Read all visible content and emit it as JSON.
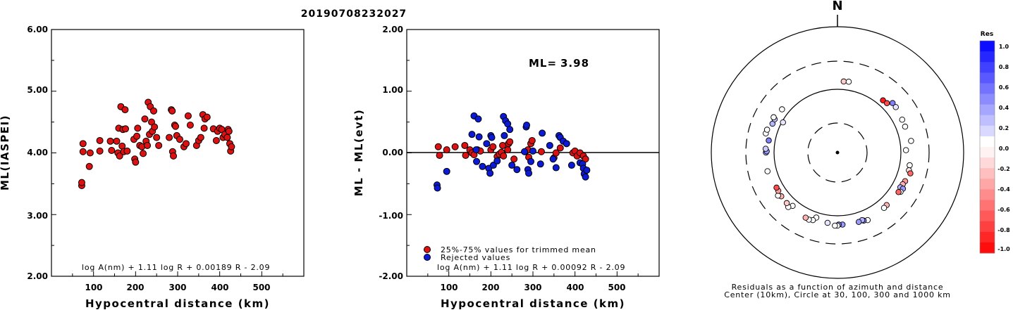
{
  "title": "20190708232027",
  "chart_data": [
    {
      "type": "scatter",
      "xlabel": "Hypocentral distance (km)",
      "ylabel": "ML(IASPEI)",
      "xlim": [
        0,
        600
      ],
      "ylim": [
        2.0,
        6.0
      ],
      "xticks": [
        "100",
        "200",
        "300",
        "400",
        "500"
      ],
      "yticks": [
        "2.00",
        "3.00",
        "4.00",
        "5.00",
        "6.00"
      ],
      "formula": "log A(nm) + 1.11 log R + 0.00189 R - 2.09",
      "color": "#dd1111",
      "points": [
        [
          72,
          3.47
        ],
        [
          72,
          3.52
        ],
        [
          75,
          4.15
        ],
        [
          75,
          4.02
        ],
        [
          90,
          3.78
        ],
        [
          92,
          4.0
        ],
        [
          115,
          4.2
        ],
        [
          115,
          4.03
        ],
        [
          140,
          4.19
        ],
        [
          143,
          4.04
        ],
        [
          155,
          4.19
        ],
        [
          158,
          4.0
        ],
        [
          160,
          4.4
        ],
        [
          162,
          3.95
        ],
        [
          165,
          4.75
        ],
        [
          168,
          4.11
        ],
        [
          170,
          4.38
        ],
        [
          172,
          4.02
        ],
        [
          175,
          4.7
        ],
        [
          176,
          4.39
        ],
        [
          180,
          4.03
        ],
        [
          196,
          4.22
        ],
        [
          198,
          3.9
        ],
        [
          200,
          3.85
        ],
        [
          203,
          4.27
        ],
        [
          205,
          4.4
        ],
        [
          210,
          4.12
        ],
        [
          215,
          4.1
        ],
        [
          218,
          3.99
        ],
        [
          222,
          4.55
        ],
        [
          225,
          4.19
        ],
        [
          228,
          4.12
        ],
        [
          230,
          4.82
        ],
        [
          233,
          4.3
        ],
        [
          235,
          4.75
        ],
        [
          238,
          4.5
        ],
        [
          240,
          4.35
        ],
        [
          243,
          4.68
        ],
        [
          245,
          4.42
        ],
        [
          250,
          4.25
        ],
        [
          255,
          4.12
        ],
        [
          280,
          4.25
        ],
        [
          285,
          4.7
        ],
        [
          287,
          4.68
        ],
        [
          288,
          4.02
        ],
        [
          290,
          3.95
        ],
        [
          293,
          4.45
        ],
        [
          295,
          4.43
        ],
        [
          298,
          4.28
        ],
        [
          305,
          4.22
        ],
        [
          315,
          4.1
        ],
        [
          320,
          4.15
        ],
        [
          325,
          4.6
        ],
        [
          330,
          4.45
        ],
        [
          345,
          4.12
        ],
        [
          350,
          4.2
        ],
        [
          355,
          4.25
        ],
        [
          360,
          4.62
        ],
        [
          363,
          4.4
        ],
        [
          365,
          4.55
        ],
        [
          370,
          4.58
        ],
        [
          385,
          4.39
        ],
        [
          392,
          4.2
        ],
        [
          395,
          4.35
        ],
        [
          400,
          4.4
        ],
        [
          405,
          4.38
        ],
        [
          408,
          4.25
        ],
        [
          412,
          4.3
        ],
        [
          418,
          4.25
        ],
        [
          420,
          4.38
        ],
        [
          422,
          4.35
        ],
        [
          424,
          4.15
        ],
        [
          426,
          4.03
        ],
        [
          428,
          4.1
        ]
      ]
    },
    {
      "type": "scatter",
      "xlabel": "Hypocentral distance (km)",
      "ylabel": "ML - ML(evt)",
      "xlim": [
        0,
        600
      ],
      "ylim": [
        -2.0,
        2.0
      ],
      "xticks": [
        "100",
        "200",
        "300",
        "400",
        "500"
      ],
      "yticks": [
        "-2.00",
        "-1.00",
        "0.00",
        "1.00",
        "2.00"
      ],
      "ml_label": "ML=",
      "ml_value": "3.98",
      "legend": [
        "25%-75% values for trimmed mean",
        "Rejected values"
      ],
      "formula": "log A(nm) + 1.11 log R + 0.00092 R - 2.09",
      "trimmed_color": "#dd1111",
      "rejected_color": "#0a1ad6",
      "trimmed": [
        [
          75,
          0.1
        ],
        [
          78,
          -0.04
        ],
        [
          95,
          0.05
        ],
        [
          115,
          0.1
        ],
        [
          138,
          0.12
        ],
        [
          140,
          -0.04
        ],
        [
          150,
          0.05
        ],
        [
          155,
          0.0
        ],
        [
          160,
          -0.03
        ],
        [
          168,
          0.05
        ],
        [
          175,
          0.03
        ],
        [
          200,
          0.05
        ],
        [
          205,
          0.1
        ],
        [
          215,
          -0.06
        ],
        [
          220,
          -0.02
        ],
        [
          225,
          0.01
        ],
        [
          228,
          0.12
        ],
        [
          230,
          -0.05
        ],
        [
          240,
          0.05
        ],
        [
          242,
          0.15
        ],
        [
          245,
          0.18
        ],
        [
          255,
          -0.1
        ],
        [
          282,
          0.02
        ],
        [
          288,
          0.05
        ],
        [
          290,
          -0.07
        ],
        [
          295,
          0.15
        ],
        [
          298,
          0.2
        ],
        [
          320,
          0.02
        ],
        [
          350,
          -0.08
        ],
        [
          355,
          0.0
        ],
        [
          365,
          0.08
        ],
        [
          395,
          0.0
        ],
        [
          400,
          0.03
        ],
        [
          405,
          -0.05
        ],
        [
          412,
          0.0
        ],
        [
          420,
          -0.05
        ],
        [
          425,
          -0.1
        ]
      ],
      "rejected": [
        [
          72,
          -0.52
        ],
        [
          73,
          -0.57
        ],
        [
          95,
          -0.3
        ],
        [
          155,
          0.3
        ],
        [
          160,
          0.6
        ],
        [
          165,
          0.05
        ],
        [
          166,
          -0.14
        ],
        [
          170,
          0.55
        ],
        [
          172,
          0.26
        ],
        [
          180,
          -0.22
        ],
        [
          190,
          0.15
        ],
        [
          195,
          -0.25
        ],
        [
          198,
          -0.33
        ],
        [
          200,
          0.28
        ],
        [
          202,
          0.25
        ],
        [
          206,
          -0.2
        ],
        [
          215,
          -0.13
        ],
        [
          230,
          0.59
        ],
        [
          232,
          0.28
        ],
        [
          235,
          0.52
        ],
        [
          240,
          0.47
        ],
        [
          245,
          0.38
        ],
        [
          250,
          -0.2
        ],
        [
          262,
          -0.27
        ],
        [
          280,
          0.02
        ],
        [
          284,
          0.42
        ],
        [
          285,
          0.45
        ],
        [
          288,
          -0.27
        ],
        [
          290,
          -0.33
        ],
        [
          295,
          -0.14
        ],
        [
          300,
          0.03
        ],
        [
          318,
          -0.18
        ],
        [
          322,
          0.32
        ],
        [
          340,
          0.12
        ],
        [
          348,
          -0.1
        ],
        [
          355,
          -0.24
        ],
        [
          362,
          0.28
        ],
        [
          365,
          0.25
        ],
        [
          372,
          0.19
        ],
        [
          380,
          0.15
        ],
        [
          392,
          -0.2
        ],
        [
          412,
          -0.16
        ],
        [
          418,
          -0.18
        ],
        [
          420,
          -0.25
        ],
        [
          422,
          -0.34
        ],
        [
          425,
          -0.39
        ],
        [
          428,
          -0.28
        ]
      ]
    },
    {
      "type": "scatter",
      "subtype": "polar",
      "north_label": "N",
      "rings_km": [
        30,
        100,
        300,
        1000
      ],
      "colorbar_title": "Res",
      "colorbar_ticks": [
        "1.0",
        "0.8",
        "0.6",
        "0.4",
        "0.2",
        "0.0",
        "-0.2",
        "-0.4",
        "-0.6",
        "-0.8",
        "-1.0"
      ],
      "caption_line1": "Residuals as a function of azimuth and distance",
      "caption_line2": "Center (10km), Circle at 30, 100, 300 and 1000 km",
      "stations": [
        [
          5,
          137,
          -0.2
        ],
        [
          9,
          139,
          0.0
        ],
        [
          41,
          126,
          -0.9
        ],
        [
          45,
          129,
          -0.7
        ],
        [
          48,
          152,
          0.5
        ],
        [
          52,
          151,
          0.1
        ],
        [
          63,
          143,
          0.0
        ],
        [
          69,
          142,
          0.0
        ],
        [
          81,
          154,
          0.0
        ],
        [
          88,
          122,
          0.0
        ],
        [
          100,
          147,
          0.0
        ],
        [
          104,
          149,
          -0.1
        ],
        [
          106,
          162,
          -0.6
        ],
        [
          113,
          148,
          -0.4
        ],
        [
          116,
          143,
          -0.3
        ],
        [
          119,
          139,
          0.3
        ],
        [
          119,
          156,
          0.4
        ],
        [
          122,
          153,
          0.0
        ],
        [
          123,
          144,
          -0.6
        ],
        [
          137,
          140,
          -0.3
        ],
        [
          140,
          142,
          0.0
        ],
        [
          156,
          152,
          0.0
        ],
        [
          159,
          146,
          0.5
        ],
        [
          160,
          140,
          0.3
        ],
        [
          163,
          144,
          0.4
        ],
        [
          176,
          142,
          0.4
        ],
        [
          179,
          141,
          0.5
        ],
        [
          180,
          147,
          0.0
        ],
        [
          182,
          147,
          0.0
        ],
        [
          188,
          135,
          0.1
        ],
        [
          198,
          122,
          0.0
        ],
        [
          200,
          140,
          0.0
        ],
        [
          203,
          146,
          0.0
        ],
        [
          206,
          143,
          -0.3
        ],
        [
          220,
          128,
          0.0
        ],
        [
          222,
          148,
          0.0
        ],
        [
          225,
          138,
          -0.2
        ],
        [
          232,
          136,
          -0.3
        ],
        [
          234,
          148,
          0.0
        ],
        [
          237,
          132,
          -0.4
        ],
        [
          240,
          131,
          -0.7
        ],
        [
          255,
          142,
          0.0
        ],
        [
          270,
          137,
          0.3
        ],
        [
          271,
          133,
          0.4
        ],
        [
          273,
          139,
          0.2
        ],
        [
          280,
          128,
          0.5
        ],
        [
          285,
          152,
          0.0
        ],
        [
          288,
          151,
          0.0
        ],
        [
          294,
          135,
          0.3
        ],
        [
          298,
          135,
          0.2
        ],
        [
          299,
          145,
          0.0
        ],
        [
          308,
          131,
          0.0
        ],
        [
          299,
          96,
          0.1
        ]
      ]
    }
  ]
}
